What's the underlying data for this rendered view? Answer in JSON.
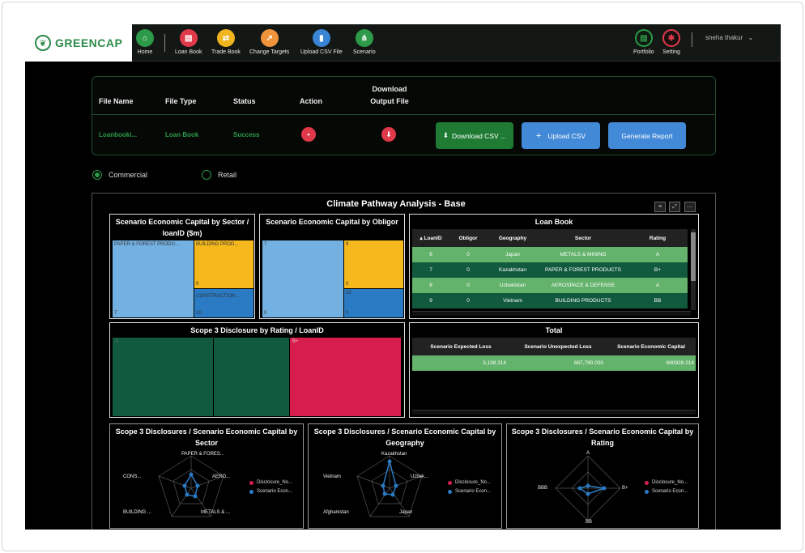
{
  "brand": {
    "name": "GREENCAP"
  },
  "nav": [
    {
      "label": "Home",
      "icon": "home-icon",
      "color": "#2d9a49",
      "glyph": "⌂"
    },
    {
      "label": "Loan Book",
      "icon": "book-icon",
      "color": "#e0394a",
      "glyph": "▤"
    },
    {
      "label": "Trade Book",
      "icon": "trade-icon",
      "color": "#f0b41e",
      "glyph": "⇄"
    },
    {
      "label": "Change Targets",
      "icon": "chart-icon",
      "color": "#f0943c",
      "glyph": "↗"
    },
    {
      "label": "Upload CSV File",
      "icon": "file-icon",
      "color": "#3a84d6",
      "glyph": "▮"
    },
    {
      "label": "Scenario",
      "icon": "scenario-icon",
      "color": "#2d9a49",
      "glyph": "⋔"
    }
  ],
  "right_nav": [
    {
      "label": "Portfolio",
      "icon": "portfolio-icon"
    },
    {
      "label": "Setting",
      "icon": "gear-icon"
    }
  ],
  "user": {
    "name": "sneha thakur"
  },
  "file_table": {
    "headers": [
      "File Name",
      "File Type",
      "Status",
      "Action",
      "Download",
      "Output File"
    ],
    "row": {
      "file_name": "Loanbooki...",
      "file_type": "Loan Book",
      "status": "Success"
    }
  },
  "buttons": {
    "download_csv": "Download CSV ...",
    "upload_csv": "Upload CSV",
    "generate_report": "Generate Report"
  },
  "radios": [
    {
      "label": "Commercial",
      "selected": true
    },
    {
      "label": "Retail",
      "selected": false
    }
  ],
  "dashboard": {
    "title": "Climate Pathway Analysis - Base",
    "sector_panel": {
      "title": "Scenario Economic Capital by Sector / loanID ($m)",
      "cells": [
        {
          "label": "PAPER & FOREST PRODU...",
          "value": "7",
          "color": "#74b1e3"
        },
        {
          "label": "BUILDING PROD...",
          "value": "9",
          "color": "#f6b91d"
        },
        {
          "label": "CONSTRUCTION ...",
          "value": "10",
          "color": "#2a7bc4"
        }
      ]
    },
    "obligor_panel": {
      "title": "Scenario Economic Capital by Obligor",
      "cells": [
        {
          "value": "7",
          "sub": "0",
          "color": "#74b1e3"
        },
        {
          "value": "9",
          "sub": "0",
          "color": "#f6b91d"
        },
        {
          "value": "10",
          "sub": "0",
          "color": "#2a7bc4"
        }
      ]
    },
    "loan_book": {
      "title": "Loan Book",
      "headers": [
        "LoanID",
        "Obligor",
        "Geography",
        "Sector",
        "Rating"
      ],
      "rows": [
        [
          "6",
          "0",
          "Japan",
          "METALS & MINING",
          "A"
        ],
        [
          "7",
          "0",
          "Kazakhstan",
          "PAPER & FOREST PRODUCTS",
          "B+"
        ],
        [
          "8",
          "0",
          "Uzbekistan",
          "AEROSPACE & DEFENSE",
          "A"
        ],
        [
          "9",
          "0",
          "Vietnam",
          "BUILDING PRODUCTS",
          "BB"
        ]
      ]
    },
    "scope3_rating": {
      "title": "Scope 3 Disclosure by Rating / LoanID",
      "cells": [
        {
          "label": "A",
          "color": "#125a3e"
        },
        {
          "label": "",
          "color": "#125a3e"
        },
        {
          "label": "B+",
          "color": "#d71d4e"
        }
      ]
    },
    "total": {
      "title": "Total",
      "headers": [
        "Scenario Expected Loss",
        "Scenario Unexpected Loss",
        "Scenario Economic Capital"
      ],
      "values": [
        "3,138.214",
        "687,790.000",
        "690928.214"
      ]
    },
    "radars": [
      {
        "title": "Scope 3 Disclosures / Scenario Economic Capital by Sector",
        "labels": [
          "PAPER & FORES...",
          "AERO...",
          "METALS & ...",
          "BUILDING ...",
          "CONS..."
        ],
        "legend": [
          "Disclosure_No...",
          "Scenario Econ..."
        ]
      },
      {
        "title": "Scope 3 Disclosures / Scenario Economic Capital by Geography",
        "labels": [
          "Kazakhstan",
          "Uzbek...",
          "Japan",
          "Afghanistan",
          "Vietnam"
        ],
        "legend": [
          "Disclosure_No...",
          "Scenario Econ..."
        ]
      },
      {
        "title": "Scope 3 Disclosures / Scenario Economic Capital by Rating",
        "labels": [
          "A",
          "B+",
          "BB",
          "BBB"
        ],
        "legend": [
          "Disclosure_No...",
          "Scenario Econ..."
        ]
      }
    ],
    "legend_colors": [
      "#d71d4e",
      "#2a7bc4"
    ]
  }
}
